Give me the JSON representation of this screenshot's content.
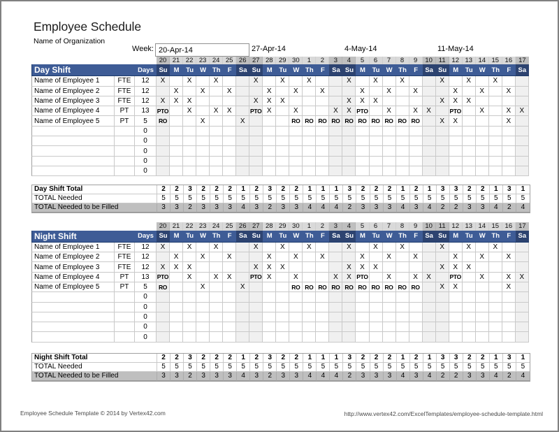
{
  "page": {
    "title": "Employee Schedule",
    "subtitle": "Name of Organization",
    "footer_left": "Employee Schedule Template © 2014 by Vertex42.com",
    "footer_right": "http://www.vertex42.com/ExcelTemplates/employee-schedule-template.html"
  },
  "week_row": {
    "label": "Week:",
    "input_value": "20-Apr-14",
    "labels": [
      "27-Apr-14",
      "4-May-14",
      "11-May-14"
    ]
  },
  "calendar": {
    "dates": [
      "20",
      "21",
      "22",
      "23",
      "24",
      "25",
      "26",
      "27",
      "28",
      "29",
      "30",
      "1",
      "2",
      "3",
      "4",
      "5",
      "6",
      "7",
      "8",
      "9",
      "10",
      "11",
      "12",
      "13",
      "14",
      "15",
      "16",
      "17"
    ],
    "day_names": [
      "Su",
      "M",
      "Tu",
      "W",
      "Th",
      "F",
      "Sa",
      "Su",
      "M",
      "Tu",
      "W",
      "Th",
      "F",
      "Sa",
      "Su",
      "M",
      "Tu",
      "W",
      "Th",
      "F",
      "Sa",
      "Su",
      "M",
      "Tu",
      "W",
      "Th",
      "F",
      "Sa"
    ],
    "weekend_indices": [
      0,
      6,
      7,
      13,
      14,
      20,
      21,
      27
    ]
  },
  "sections": [
    {
      "title": "Day Shift",
      "days_label": "Days",
      "employees": [
        {
          "name": "Name of Employee 1",
          "type": "FTE",
          "days": "12",
          "marks": [
            "X",
            "",
            "X",
            "",
            "X",
            "",
            "",
            "X",
            "",
            "X",
            "",
            "X",
            "",
            "",
            "X",
            "",
            "X",
            "",
            "X",
            "",
            "",
            "X",
            "",
            "X",
            "",
            "X",
            "",
            ""
          ]
        },
        {
          "name": "Name of Employee 2",
          "type": "FTE",
          "days": "12",
          "marks": [
            "",
            "X",
            "",
            "X",
            "",
            "X",
            "",
            "",
            "X",
            "",
            "X",
            "",
            "X",
            "",
            "",
            "X",
            "",
            "X",
            "",
            "X",
            "",
            "",
            "X",
            "",
            "X",
            "",
            "X",
            ""
          ]
        },
        {
          "name": "Name of Employee 3",
          "type": "FTE",
          "days": "12",
          "marks": [
            "X",
            "X",
            "X",
            "",
            "",
            "",
            "",
            "X",
            "X",
            "X",
            "",
            "",
            "",
            "",
            "X",
            "X",
            "X",
            "",
            "",
            "",
            "",
            "X",
            "X",
            "X",
            "",
            "",
            "",
            ""
          ]
        },
        {
          "name": "Name of Employee 4",
          "type": "PT",
          "days": "13",
          "marks": [
            "PTO",
            "",
            "X",
            "",
            "X",
            "X",
            "",
            "PTO",
            "X",
            "",
            "X",
            "",
            "",
            "X",
            "X",
            "PTO",
            "",
            "X",
            "",
            "X",
            "X",
            "",
            "PTO",
            "",
            "X",
            "",
            "X",
            "X"
          ]
        },
        {
          "name": "Name of Employee 5",
          "type": "PT",
          "days": "5",
          "marks": [
            "RO",
            "",
            "",
            "X",
            "",
            "",
            "X",
            "",
            "",
            "",
            "RO",
            "RO",
            "RO",
            "RO",
            "RO",
            "RO",
            "RO",
            "RO",
            "RO",
            "RO",
            "",
            "X",
            "X",
            "",
            "",
            "",
            "X",
            ""
          ]
        }
      ],
      "empty_row_days": [
        "0",
        "0",
        "0",
        "0",
        "0"
      ],
      "total_row": {
        "label": "Day Shift Total",
        "values": [
          "2",
          "2",
          "3",
          "2",
          "2",
          "2",
          "1",
          "2",
          "3",
          "2",
          "2",
          "1",
          "1",
          "1",
          "3",
          "2",
          "2",
          "2",
          "1",
          "2",
          "1",
          "3",
          "3",
          "2",
          "2",
          "1",
          "3",
          "1"
        ]
      },
      "needed_row": {
        "label": "TOTAL Needed",
        "values": [
          "5",
          "5",
          "5",
          "5",
          "5",
          "5",
          "5",
          "5",
          "5",
          "5",
          "5",
          "5",
          "5",
          "5",
          "5",
          "5",
          "5",
          "5",
          "5",
          "5",
          "5",
          "5",
          "5",
          "5",
          "5",
          "5",
          "5",
          "5"
        ]
      },
      "filled_row": {
        "label": "TOTAL Needed to be Filled",
        "values": [
          "3",
          "3",
          "2",
          "3",
          "3",
          "3",
          "4",
          "3",
          "2",
          "3",
          "3",
          "4",
          "4",
          "4",
          "2",
          "3",
          "3",
          "3",
          "4",
          "3",
          "4",
          "2",
          "2",
          "3",
          "3",
          "4",
          "2",
          "4"
        ]
      }
    },
    {
      "title": "Night Shift",
      "days_label": "Days",
      "employees": [
        {
          "name": "Name of Employee 1",
          "type": "FTE",
          "days": "12",
          "marks": [
            "X",
            "",
            "X",
            "",
            "X",
            "",
            "",
            "X",
            "",
            "X",
            "",
            "X",
            "",
            "",
            "X",
            "",
            "X",
            "",
            "X",
            "",
            "",
            "X",
            "",
            "X",
            "",
            "X",
            "",
            ""
          ]
        },
        {
          "name": "Name of Employee 2",
          "type": "FTE",
          "days": "12",
          "marks": [
            "",
            "X",
            "",
            "X",
            "",
            "X",
            "",
            "",
            "X",
            "",
            "X",
            "",
            "X",
            "",
            "",
            "X",
            "",
            "X",
            "",
            "X",
            "",
            "",
            "X",
            "",
            "X",
            "",
            "X",
            ""
          ]
        },
        {
          "name": "Name of Employee 3",
          "type": "FTE",
          "days": "12",
          "marks": [
            "X",
            "X",
            "X",
            "",
            "",
            "",
            "",
            "X",
            "X",
            "X",
            "",
            "",
            "",
            "",
            "X",
            "X",
            "X",
            "",
            "",
            "",
            "",
            "X",
            "X",
            "X",
            "",
            "",
            "",
            ""
          ]
        },
        {
          "name": "Name of Employee 4",
          "type": "PT",
          "days": "13",
          "marks": [
            "PTO",
            "",
            "X",
            "",
            "X",
            "X",
            "",
            "PTO",
            "X",
            "",
            "X",
            "",
            "",
            "X",
            "X",
            "PTO",
            "",
            "X",
            "",
            "X",
            "X",
            "",
            "PTO",
            "",
            "X",
            "",
            "X",
            "X"
          ]
        },
        {
          "name": "Name of Employee 5",
          "type": "PT",
          "days": "5",
          "marks": [
            "RO",
            "",
            "",
            "X",
            "",
            "",
            "X",
            "",
            "",
            "",
            "RO",
            "RO",
            "RO",
            "RO",
            "RO",
            "RO",
            "RO",
            "RO",
            "RO",
            "RO",
            "",
            "X",
            "X",
            "",
            "",
            "",
            "X",
            ""
          ]
        }
      ],
      "empty_row_days": [
        "0",
        "0",
        "0",
        "0",
        "0"
      ],
      "total_row": {
        "label": "Night Shift Total",
        "values": [
          "2",
          "2",
          "3",
          "2",
          "2",
          "2",
          "1",
          "2",
          "3",
          "2",
          "2",
          "1",
          "1",
          "1",
          "3",
          "2",
          "2",
          "2",
          "1",
          "2",
          "1",
          "3",
          "3",
          "2",
          "2",
          "1",
          "3",
          "1"
        ]
      },
      "needed_row": {
        "label": "TOTAL Needed",
        "values": [
          "5",
          "5",
          "5",
          "5",
          "5",
          "5",
          "5",
          "5",
          "5",
          "5",
          "5",
          "5",
          "5",
          "5",
          "5",
          "5",
          "5",
          "5",
          "5",
          "5",
          "5",
          "5",
          "5",
          "5",
          "5",
          "5",
          "5",
          "5"
        ]
      },
      "filled_row": {
        "label": "TOTAL Needed to be Filled",
        "values": [
          "3",
          "3",
          "2",
          "3",
          "3",
          "3",
          "4",
          "3",
          "2",
          "3",
          "3",
          "4",
          "4",
          "4",
          "2",
          "3",
          "3",
          "3",
          "4",
          "3",
          "4",
          "2",
          "2",
          "3",
          "3",
          "4",
          "2",
          "4"
        ]
      }
    }
  ],
  "colors": {
    "header_blue": "#3e5c96",
    "header_blue_weekend": "#2d4370",
    "header_border_navy": "#1c3a6b",
    "date_row_bg": "#d9d9d9",
    "date_row_weekend_bg": "#bfbfbf",
    "weekend_col_bg": "#f0f0f0",
    "filled_row_bg": "#bfbfbf",
    "grid_line": "#c9c9c9",
    "outer_line": "#a0a0a0",
    "frame_gray": "#818181"
  }
}
